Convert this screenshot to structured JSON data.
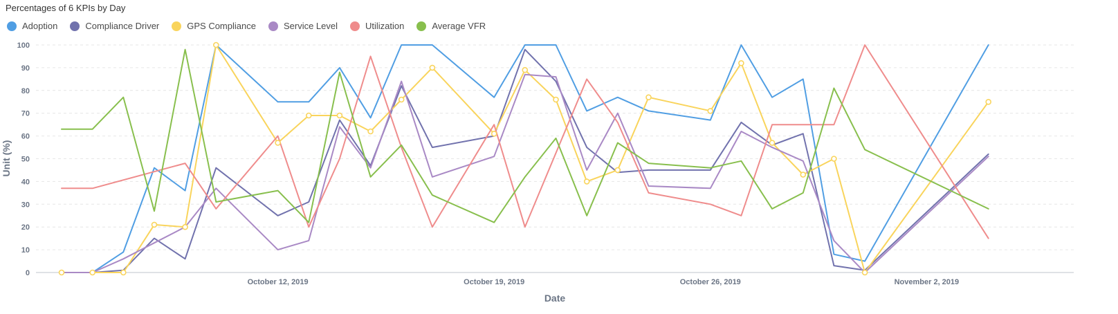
{
  "chart_data": {
    "type": "line",
    "title": "Percentages of 6 KPIs by Day",
    "xlabel": "Date",
    "ylabel": "Unit (%)",
    "ylim": [
      0,
      100
    ],
    "yticks": [
      0,
      10,
      20,
      30,
      40,
      50,
      60,
      70,
      80,
      90,
      100
    ],
    "xlim": [
      "2019-10-05",
      "2019-11-06"
    ],
    "xticks": [
      {
        "date": "2019-10-12",
        "label": "October 12, 2019"
      },
      {
        "date": "2019-10-19",
        "label": "October 19, 2019"
      },
      {
        "date": "2019-10-26",
        "label": "October 26, 2019"
      },
      {
        "date": "2019-11-02",
        "label": "November 2, 2019"
      }
    ],
    "grid": true,
    "legend_position": "top-left",
    "series": [
      {
        "name": "Adoption",
        "color": "#509ee3",
        "markers": false,
        "points": [
          [
            "2019-10-05",
            0
          ],
          [
            "2019-10-06",
            0
          ],
          [
            "2019-10-07",
            9
          ],
          [
            "2019-10-08",
            46
          ],
          [
            "2019-10-09",
            36
          ],
          [
            "2019-10-10",
            100
          ],
          [
            "2019-10-12",
            75
          ],
          [
            "2019-10-13",
            75
          ],
          [
            "2019-10-14",
            90
          ],
          [
            "2019-10-15",
            68
          ],
          [
            "2019-10-16",
            100
          ],
          [
            "2019-10-17",
            100
          ],
          [
            "2019-10-19",
            77
          ],
          [
            "2019-10-20",
            100
          ],
          [
            "2019-10-21",
            100
          ],
          [
            "2019-10-22",
            71
          ],
          [
            "2019-10-23",
            77
          ],
          [
            "2019-10-24",
            71
          ],
          [
            "2019-10-26",
            67
          ],
          [
            "2019-10-27",
            100
          ],
          [
            "2019-10-28",
            77
          ],
          [
            "2019-10-29",
            85
          ],
          [
            "2019-10-30",
            8
          ],
          [
            "2019-10-31",
            5
          ],
          [
            "2019-11-04",
            100
          ]
        ]
      },
      {
        "name": "Compliance Driver",
        "color": "#7172ad",
        "markers": false,
        "points": [
          [
            "2019-10-05",
            0
          ],
          [
            "2019-10-06",
            0
          ],
          [
            "2019-10-07",
            1
          ],
          [
            "2019-10-08",
            15
          ],
          [
            "2019-10-09",
            6
          ],
          [
            "2019-10-10",
            46
          ],
          [
            "2019-10-12",
            25
          ],
          [
            "2019-10-13",
            31
          ],
          [
            "2019-10-14",
            67
          ],
          [
            "2019-10-15",
            47
          ],
          [
            "2019-10-16",
            82
          ],
          [
            "2019-10-17",
            55
          ],
          [
            "2019-10-19",
            60
          ],
          [
            "2019-10-20",
            98
          ],
          [
            "2019-10-21",
            84
          ],
          [
            "2019-10-22",
            55
          ],
          [
            "2019-10-23",
            44
          ],
          [
            "2019-10-24",
            45
          ],
          [
            "2019-10-26",
            45
          ],
          [
            "2019-10-27",
            66
          ],
          [
            "2019-10-28",
            56
          ],
          [
            "2019-10-29",
            61
          ],
          [
            "2019-10-30",
            3
          ],
          [
            "2019-10-31",
            1
          ],
          [
            "2019-11-04",
            52
          ]
        ]
      },
      {
        "name": "GPS Compliance",
        "color": "#f9d45c",
        "markers": true,
        "points": [
          [
            "2019-10-05",
            0
          ],
          [
            "2019-10-06",
            0
          ],
          [
            "2019-10-07",
            0
          ],
          [
            "2019-10-08",
            21
          ],
          [
            "2019-10-09",
            20
          ],
          [
            "2019-10-10",
            100
          ],
          [
            "2019-10-12",
            57
          ],
          [
            "2019-10-13",
            69
          ],
          [
            "2019-10-14",
            69
          ],
          [
            "2019-10-15",
            62
          ],
          [
            "2019-10-16",
            76
          ],
          [
            "2019-10-17",
            90
          ],
          [
            "2019-10-19",
            61
          ],
          [
            "2019-10-20",
            89
          ],
          [
            "2019-10-21",
            76
          ],
          [
            "2019-10-22",
            40
          ],
          [
            "2019-10-23",
            45
          ],
          [
            "2019-10-24",
            77
          ],
          [
            "2019-10-26",
            71
          ],
          [
            "2019-10-27",
            92
          ],
          [
            "2019-10-28",
            57
          ],
          [
            "2019-10-29",
            43
          ],
          [
            "2019-10-30",
            50
          ],
          [
            "2019-10-31",
            0
          ],
          [
            "2019-11-04",
            75
          ]
        ]
      },
      {
        "name": "Service Level",
        "color": "#a989c5",
        "markers": false,
        "points": [
          [
            "2019-10-05",
            0
          ],
          [
            "2019-10-06",
            0
          ],
          [
            "2019-10-07",
            6
          ],
          [
            "2019-10-08",
            13
          ],
          [
            "2019-10-09",
            20
          ],
          [
            "2019-10-10",
            37
          ],
          [
            "2019-10-12",
            10
          ],
          [
            "2019-10-13",
            14
          ],
          [
            "2019-10-14",
            64
          ],
          [
            "2019-10-15",
            46
          ],
          [
            "2019-10-16",
            84
          ],
          [
            "2019-10-17",
            42
          ],
          [
            "2019-10-19",
            51
          ],
          [
            "2019-10-20",
            87
          ],
          [
            "2019-10-21",
            86
          ],
          [
            "2019-10-22",
            45
          ],
          [
            "2019-10-23",
            70
          ],
          [
            "2019-10-24",
            38
          ],
          [
            "2019-10-26",
            37
          ],
          [
            "2019-10-27",
            62
          ],
          [
            "2019-10-28",
            55
          ],
          [
            "2019-10-29",
            49
          ],
          [
            "2019-10-30",
            14
          ],
          [
            "2019-10-31",
            0
          ],
          [
            "2019-11-04",
            51
          ]
        ]
      },
      {
        "name": "Utilization",
        "color": "#ef8c8c",
        "markers": false,
        "points": [
          [
            "2019-10-05",
            37
          ],
          [
            "2019-10-06",
            37
          ],
          [
            "2019-10-09",
            48
          ],
          [
            "2019-10-10",
            28
          ],
          [
            "2019-10-12",
            60
          ],
          [
            "2019-10-13",
            20
          ],
          [
            "2019-10-14",
            50
          ],
          [
            "2019-10-15",
            95
          ],
          [
            "2019-10-16",
            55
          ],
          [
            "2019-10-17",
            20
          ],
          [
            "2019-10-19",
            65
          ],
          [
            "2019-10-20",
            20
          ],
          [
            "2019-10-22",
            85
          ],
          [
            "2019-10-23",
            66
          ],
          [
            "2019-10-24",
            35
          ],
          [
            "2019-10-26",
            30
          ],
          [
            "2019-10-27",
            25
          ],
          [
            "2019-10-28",
            65
          ],
          [
            "2019-10-30",
            65
          ],
          [
            "2019-10-31",
            100
          ],
          [
            "2019-11-04",
            15
          ]
        ]
      },
      {
        "name": "Average VFR",
        "color": "#88bf4d",
        "markers": false,
        "points": [
          [
            "2019-10-05",
            63
          ],
          [
            "2019-10-06",
            63
          ],
          [
            "2019-10-07",
            77
          ],
          [
            "2019-10-08",
            27
          ],
          [
            "2019-10-09",
            98
          ],
          [
            "2019-10-10",
            31
          ],
          [
            "2019-10-12",
            36
          ],
          [
            "2019-10-13",
            22
          ],
          [
            "2019-10-14",
            88
          ],
          [
            "2019-10-15",
            42
          ],
          [
            "2019-10-16",
            56
          ],
          [
            "2019-10-17",
            34
          ],
          [
            "2019-10-19",
            22
          ],
          [
            "2019-10-20",
            42
          ],
          [
            "2019-10-21",
            59
          ],
          [
            "2019-10-22",
            25
          ],
          [
            "2019-10-23",
            57
          ],
          [
            "2019-10-24",
            48
          ],
          [
            "2019-10-26",
            46
          ],
          [
            "2019-10-27",
            49
          ],
          [
            "2019-10-28",
            28
          ],
          [
            "2019-10-29",
            35
          ],
          [
            "2019-10-30",
            81
          ],
          [
            "2019-10-31",
            54
          ],
          [
            "2019-11-04",
            28
          ]
        ]
      }
    ]
  }
}
